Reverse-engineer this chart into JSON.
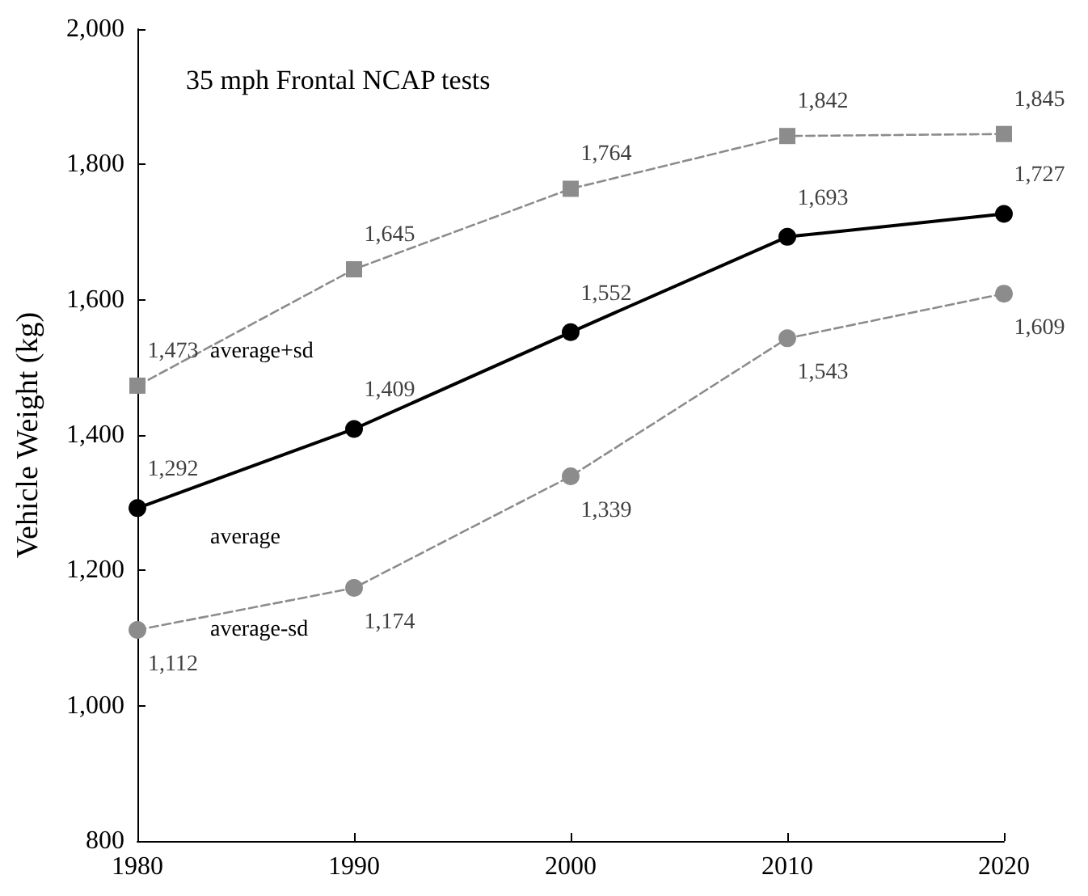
{
  "chart_data": {
    "type": "line",
    "title": "35 mph Frontal NCAP tests",
    "ylabel": "Vehicle Weight (kg)",
    "x": [
      1980,
      1990,
      2000,
      2010,
      2020
    ],
    "xlim": [
      1980,
      2020
    ],
    "xticks": [
      1980,
      1990,
      2000,
      2010,
      2020
    ],
    "ylim": [
      800,
      2000
    ],
    "yticks": [
      {
        "value": 800,
        "label": "800"
      },
      {
        "value": 1000,
        "label": "1,000"
      },
      {
        "value": 1200,
        "label": "1,200"
      },
      {
        "value": 1400,
        "label": "1,400"
      },
      {
        "value": 1600,
        "label": "1,600"
      },
      {
        "value": 1800,
        "label": "1,800"
      },
      {
        "value": 2000,
        "label": "2,000"
      }
    ],
    "grid": false,
    "legend": false,
    "series": [
      {
        "name": "average+sd",
        "color": "#8c8c8c",
        "marker": "square",
        "line_style": "dashed",
        "values": [
          1473,
          1645,
          1764,
          1842,
          1845
        ],
        "value_labels": [
          "1,473",
          "1,645",
          "1,764",
          "1,842",
          "1,845"
        ]
      },
      {
        "name": "average",
        "color": "#000000",
        "marker": "circle",
        "line_style": "solid",
        "values": [
          1292,
          1409,
          1552,
          1693,
          1727
        ],
        "value_labels": [
          "1,292",
          "1,409",
          "1,552",
          "1,693",
          "1,727"
        ]
      },
      {
        "name": "average-sd",
        "color": "#8c8c8c",
        "marker": "circle",
        "line_style": "dashed",
        "values": [
          1112,
          1174,
          1339,
          1543,
          1609
        ],
        "value_labels": [
          "1,112",
          "1,174",
          "1,339",
          "1,543",
          "1,609"
        ]
      }
    ]
  }
}
